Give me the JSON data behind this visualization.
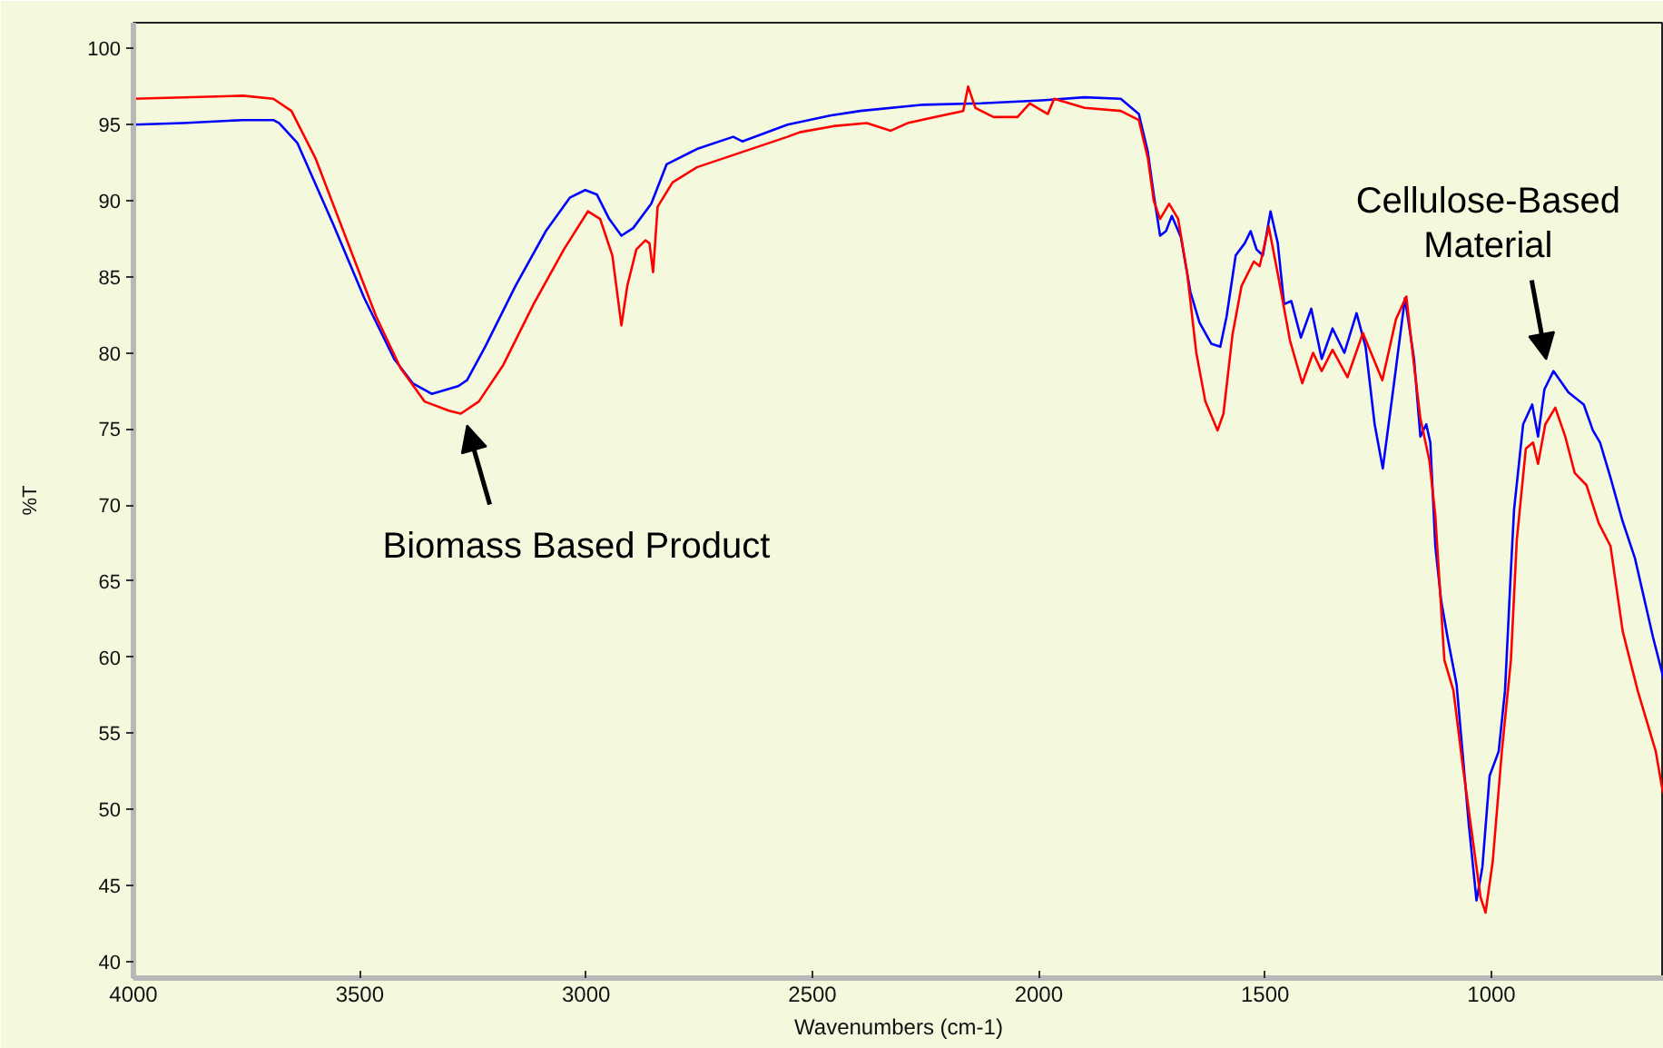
{
  "chart_data": {
    "type": "line",
    "xlabel": "Wavenumbers (cm-1)",
    "ylabel": "%T",
    "xlim": [
      4000,
      619
    ],
    "ylim": [
      38.9,
      101.7
    ],
    "xticks": [
      4000,
      3500,
      3000,
      2500,
      2000,
      1500,
      1000
    ],
    "yticks": [
      40,
      45,
      50,
      55,
      60,
      65,
      70,
      75,
      80,
      85,
      90,
      95,
      100
    ],
    "series": [
      {
        "color": "#0000ff",
        "x": [
          4000,
          3890,
          3758,
          3691,
          3678,
          3638,
          3558,
          3490,
          3424,
          3383,
          3341,
          3283,
          3263,
          3223,
          3156,
          3089,
          3036,
          3002,
          2976,
          2949,
          2922,
          2896,
          2856,
          2822,
          2755,
          2675,
          2655,
          2555,
          2461,
          2394,
          2260,
          2127,
          1993,
          1899,
          1819,
          1779,
          1759,
          1746,
          1732,
          1719,
          1706,
          1686,
          1665,
          1645,
          1619,
          1599,
          1585,
          1565,
          1545,
          1532,
          1519,
          1505,
          1488,
          1472,
          1458,
          1442,
          1421,
          1398,
          1375,
          1351,
          1325,
          1298,
          1278,
          1258,
          1240,
          1217,
          1191,
          1171,
          1157,
          1144,
          1135,
          1124,
          1111,
          1097,
          1077,
          1064,
          1050,
          1033,
          1020,
          1004,
          984,
          970,
          957,
          950,
          930,
          910,
          897,
          883,
          863,
          830,
          796,
          776,
          760,
          736,
          711,
          683,
          643,
          619
        ],
        "values": [
          95.0,
          95.1,
          95.3,
          95.3,
          95.1,
          93.8,
          88.4,
          83.6,
          79.6,
          78.0,
          77.3,
          77.8,
          78.2,
          80.4,
          84.4,
          88.0,
          90.2,
          90.7,
          90.4,
          88.8,
          87.7,
          88.2,
          89.8,
          92.4,
          93.4,
          94.2,
          93.9,
          95.0,
          95.6,
          95.9,
          96.3,
          96.4,
          96.6,
          96.8,
          96.7,
          95.7,
          93.2,
          90.4,
          87.7,
          88.0,
          89.0,
          87.6,
          84.0,
          82.0,
          80.6,
          80.4,
          82.4,
          86.4,
          87.2,
          88.0,
          86.8,
          86.4,
          89.3,
          87.2,
          83.2,
          83.4,
          81.0,
          82.9,
          79.6,
          81.6,
          80.0,
          82.6,
          80.4,
          75.3,
          72.4,
          77.6,
          83.6,
          79.6,
          74.5,
          75.3,
          74.1,
          67.3,
          63.7,
          61.3,
          58.2,
          53.8,
          49.0,
          44.0,
          46.2,
          52.2,
          53.8,
          57.8,
          65.7,
          69.7,
          75.3,
          76.6,
          74.5,
          77.6,
          78.8,
          77.4,
          76.6,
          74.9,
          74.1,
          71.7,
          69.0,
          66.5,
          61.3,
          58.5
        ]
      },
      {
        "color": "#ff0000",
        "x": [
          4000,
          3758,
          3691,
          3651,
          3598,
          3531,
          3464,
          3410,
          3357,
          3303,
          3277,
          3237,
          3183,
          3116,
          3049,
          2996,
          2969,
          2942,
          2922,
          2909,
          2889,
          2869,
          2860,
          2852,
          2842,
          2809,
          2755,
          2655,
          2555,
          2528,
          2454,
          2380,
          2327,
          2290,
          2260,
          2167,
          2156,
          2140,
          2100,
          2047,
          2020,
          1980,
          1966,
          1899,
          1819,
          1779,
          1759,
          1746,
          1732,
          1712,
          1692,
          1672,
          1652,
          1632,
          1605,
          1592,
          1572,
          1552,
          1525,
          1512,
          1492,
          1472,
          1445,
          1418,
          1394,
          1375,
          1351,
          1318,
          1284,
          1241,
          1211,
          1188,
          1171,
          1157,
          1137,
          1124,
          1104,
          1084,
          1064,
          1044,
          1024,
          1013,
          997,
          977,
          957,
          944,
          924,
          908,
          897,
          881,
          859,
          837,
          816,
          790,
          763,
          737,
          710,
          677,
          637,
          623,
          619
        ],
        "values": [
          96.7,
          96.9,
          96.7,
          95.9,
          92.8,
          87.6,
          82.4,
          79.0,
          76.8,
          76.2,
          76.0,
          76.8,
          79.2,
          83.2,
          86.8,
          89.3,
          88.8,
          86.4,
          81.8,
          84.4,
          86.8,
          87.4,
          87.2,
          85.3,
          89.6,
          91.2,
          92.2,
          93.2,
          94.2,
          94.5,
          94.9,
          95.1,
          94.6,
          95.1,
          95.3,
          95.9,
          97.5,
          96.1,
          95.5,
          95.5,
          96.4,
          95.7,
          96.7,
          96.1,
          95.9,
          95.3,
          92.8,
          90.0,
          88.8,
          89.8,
          88.8,
          85.2,
          80.0,
          76.8,
          74.9,
          76.0,
          81.2,
          84.4,
          86.0,
          85.7,
          88.3,
          85.2,
          80.8,
          78.0,
          80.0,
          78.8,
          80.2,
          78.4,
          81.3,
          78.2,
          82.2,
          83.7,
          79.2,
          75.7,
          72.9,
          69.3,
          59.8,
          57.8,
          53.0,
          48.6,
          44.2,
          43.2,
          46.6,
          53.8,
          59.8,
          67.7,
          73.7,
          74.1,
          72.7,
          75.3,
          76.4,
          74.5,
          72.1,
          71.3,
          68.8,
          67.3,
          61.7,
          57.8,
          53.8,
          51.4,
          51.0
        ]
      }
    ],
    "annotations": [
      {
        "text": "Biomass Based Product",
        "x": 3277,
        "y": 76.0
      },
      {
        "text": "Cellulose-Based\nMaterial",
        "x": 863,
        "y": 78.8
      }
    ]
  }
}
